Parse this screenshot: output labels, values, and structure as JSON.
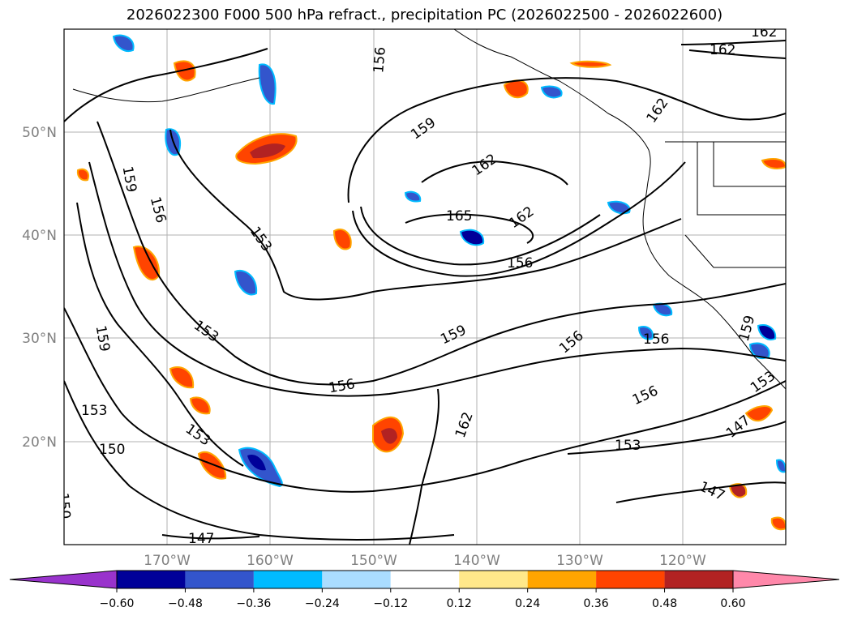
{
  "title": "2026022300 F000 500 hPa refract., precipitation PC (2026022500 - 2026022600)",
  "map": {
    "lon_labels": [
      "170°W",
      "160°W",
      "150°W",
      "140°W",
      "130°W",
      "120°W"
    ],
    "lat_labels": [
      "50°N",
      "40°N",
      "30°N",
      "20°N"
    ],
    "contour_labels": [
      "162",
      "162",
      "156",
      "159",
      "162",
      "162",
      "165",
      "162",
      "156",
      "153",
      "159",
      "156",
      "159",
      "153",
      "156",
      "159",
      "156",
      "156",
      "153",
      "150",
      "153",
      "147",
      "162",
      "153",
      "147",
      "147",
      "150",
      "156",
      "159",
      "153"
    ]
  },
  "colorbar": {
    "ticks": [
      "−0.60",
      "−0.48",
      "−0.36",
      "−0.24",
      "−0.12",
      "0.12",
      "0.24",
      "0.36",
      "0.48",
      "0.60"
    ],
    "colors": [
      "#9933cc",
      "#000099",
      "#3355cc",
      "#00bbff",
      "#aaddff",
      "#ffffff",
      "#ffe88a",
      "#ffa500",
      "#ff4400",
      "#b22222",
      "#ff88aa"
    ]
  }
}
